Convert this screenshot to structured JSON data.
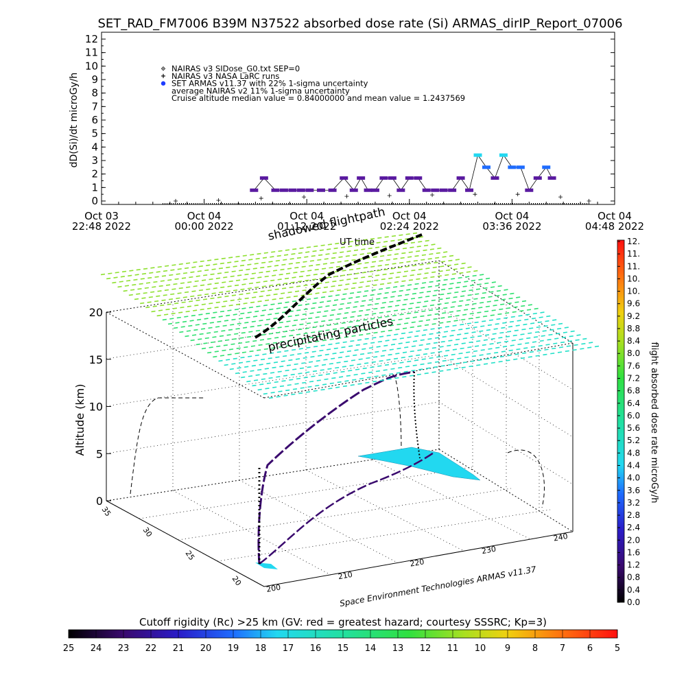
{
  "title": "SET_RAD_FM7006  B39M N37522 absorbed dose rate (Si) ARMAS_dirIP_Report_07006",
  "chart_data": [
    {
      "type": "scatter",
      "name": "time-series",
      "ylabel": "dD(Si)/dt microGy/h",
      "ylim": [
        0,
        12
      ],
      "yticks": [
        "0",
        "1",
        "2",
        "3",
        "4",
        "5",
        "6",
        "7",
        "8",
        "9",
        "10",
        "11",
        "12"
      ],
      "xlim": [
        "2022-10-03T22:48",
        "2022-10-04T04:48"
      ],
      "xticks": [
        {
          "line1": "Oct 03",
          "line2": "22:48 2022"
        },
        {
          "line1": "Oct 04",
          "line2": "00:00 2022"
        },
        {
          "line1": "Oct 04",
          "line2": "01:12 2022"
        },
        {
          "line1": "Oct 04",
          "line2": "02:24 2022"
        },
        {
          "line1": "Oct 04",
          "line2": "03:36 2022"
        },
        {
          "line1": "Oct 04",
          "line2": "04:48 2022"
        }
      ],
      "legend": [
        {
          "symbol": "diamond",
          "text": "NAIRAS v3 SIDose_G0.txt SEP=0"
        },
        {
          "symbol": "plus",
          "text": "NAIRAS v3 NASA LaRC runs"
        },
        {
          "symbol": "dot",
          "text": "SET ARMAS v11.37 with 22% 1-sigma uncertainty"
        },
        {
          "symbol": "none",
          "text": "average NAIRAS v2 11% 1-sigma uncertainty"
        },
        {
          "symbol": "none",
          "text": "Cruise altitude median value = 0.84000000 and mean value = 1.2437569"
        }
      ],
      "series": [
        {
          "name": "SET ARMAS v11.37",
          "x": [
            "2022-10-04T00:35",
            "2022-10-04T00:42",
            "2022-10-04T00:50",
            "2022-10-04T00:56",
            "2022-10-04T01:02",
            "2022-10-04T01:08",
            "2022-10-04T01:14",
            "2022-10-04T01:22",
            "2022-10-04T01:30",
            "2022-10-04T01:38",
            "2022-10-04T01:45",
            "2022-10-04T01:50",
            "2022-10-04T01:55",
            "2022-10-04T02:00",
            "2022-10-04T02:06",
            "2022-10-04T02:12",
            "2022-10-04T02:18",
            "2022-10-04T02:24",
            "2022-10-04T02:30",
            "2022-10-04T02:36",
            "2022-10-04T02:42",
            "2022-10-04T02:48",
            "2022-10-04T02:54",
            "2022-10-04T03:00",
            "2022-10-04T03:06",
            "2022-10-04T03:12",
            "2022-10-04T03:18",
            "2022-10-04T03:24",
            "2022-10-04T03:30",
            "2022-10-04T03:36",
            "2022-10-04T03:42",
            "2022-10-04T03:48",
            "2022-10-04T03:54",
            "2022-10-04T04:00",
            "2022-10-04T04:04"
          ],
          "y": [
            0.8,
            1.7,
            0.8,
            0.8,
            0.8,
            0.8,
            0.8,
            0.8,
            0.8,
            1.7,
            0.8,
            1.7,
            0.8,
            0.8,
            1.7,
            1.7,
            0.8,
            1.7,
            1.7,
            0.8,
            0.8,
            0.8,
            0.8,
            1.7,
            0.8,
            3.4,
            2.5,
            1.7,
            3.4,
            2.5,
            2.5,
            0.8,
            1.7,
            2.5,
            1.7
          ]
        },
        {
          "name": "NAIRAS v3",
          "x": [
            "2022-10-03T23:40",
            "2022-10-04T00:10",
            "2022-10-04T00:40",
            "2022-10-04T01:10",
            "2022-10-04T01:40",
            "2022-10-04T02:10",
            "2022-10-04T02:40",
            "2022-10-04T03:10",
            "2022-10-04T03:40",
            "2022-10-04T04:10",
            "2022-10-04T04:30"
          ],
          "y": [
            0,
            0.05,
            0.2,
            0.3,
            0.35,
            0.4,
            0.45,
            0.5,
            0.5,
            0.3,
            0
          ]
        }
      ]
    },
    {
      "type": "scatter",
      "name": "3d-flightpath",
      "zlabel": "Altitude (km)",
      "zlim": [
        0,
        20
      ],
      "zticks": [
        "0",
        "5",
        "10",
        "15",
        "20"
      ],
      "lon_ticks": [
        "200",
        "210",
        "220",
        "230",
        "240"
      ],
      "lat_ticks": [
        "20",
        "25",
        "30",
        "35"
      ],
      "annotations": [
        "shadowed flightpath",
        "UT time",
        "precipitating particles"
      ],
      "footer": "Space Environment Technologies ARMAS v11.37"
    },
    {
      "type": "heatmap",
      "name": "colorbar-dose",
      "label": "flight absorbed dose rate microGy/h",
      "ticks": [
        "0.0",
        "0.4",
        "0.8",
        "1.2",
        "1.6",
        "2.0",
        "2.4",
        "2.8",
        "3.2",
        "3.6",
        "4.0",
        "4.4",
        "4.8",
        "5.2",
        "5.6",
        "6.0",
        "6.4",
        "6.8",
        "7.2",
        "7.6",
        "8.0",
        "8.4",
        "8.8",
        "9.2",
        "9.6",
        "10.",
        "10.",
        "11.",
        "11.",
        "12."
      ],
      "range": [
        0,
        12
      ]
    },
    {
      "type": "heatmap",
      "name": "colorbar-rigidity",
      "label": "Cutoff rigidity (Rc) >25 km (GV: red = greatest hazard; courtesy SSSRC; Kp=3)",
      "ticks": [
        "25",
        "24",
        "23",
        "22",
        "21",
        "20",
        "19",
        "18",
        "17",
        "16",
        "15",
        "14",
        "13",
        "12",
        "11",
        "10",
        "9",
        "8",
        "7",
        "6",
        "5"
      ],
      "range": [
        25,
        5
      ]
    }
  ]
}
